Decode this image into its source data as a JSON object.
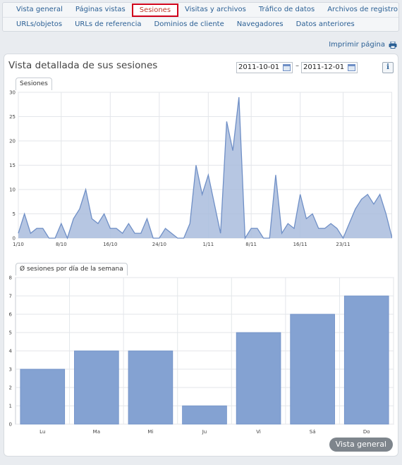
{
  "tabs_row1": [
    "Vista general",
    "Páginas vistas",
    "Sesiones",
    "Visitas y archivos",
    "Tráfico de datos",
    "Archivos de registro"
  ],
  "tabs_row2": [
    "URLs/objetos",
    "URLs de referencia",
    "Dominios de cliente",
    "Navegadores",
    "Datos anteriores"
  ],
  "active_tab": "Sesiones",
  "print_label": "Imprimir página",
  "panel": {
    "title": "Vista detallada de sus sesiones",
    "date_from": "2011-10-01",
    "date_separator": "–",
    "date_to": "2011-12-01",
    "info_label": "i",
    "overview_button": "Vista general"
  },
  "colors": {
    "fill": "#a9bcdd",
    "stroke": "#6f8fc6",
    "bar": "#84a2d2",
    "bar_stroke": "#6f8fc6",
    "active_tab": "#d0021b"
  },
  "chart_data": [
    {
      "type": "area",
      "title": "Sesiones",
      "x_tick_labels": [
        "1/10",
        "8/10",
        "16/10",
        "24/10",
        "1/11",
        "8/11",
        "16/11",
        "23/11"
      ],
      "x_tick_indices": [
        0,
        7,
        15,
        23,
        31,
        38,
        46,
        53
      ],
      "ylim": [
        0,
        30
      ],
      "yticks": [
        0,
        5,
        10,
        15,
        20,
        25,
        30
      ],
      "values": [
        1,
        5,
        1,
        2,
        2,
        0,
        0,
        3,
        0,
        4,
        6,
        10,
        4,
        3,
        5,
        2,
        2,
        1,
        3,
        1,
        1,
        4,
        0,
        0,
        2,
        1,
        0,
        0,
        3,
        15,
        9,
        13,
        7,
        1,
        24,
        18,
        29,
        0,
        2,
        2,
        0,
        0,
        13,
        1,
        3,
        2,
        9,
        4,
        5,
        2,
        2,
        3,
        2,
        0,
        3,
        6,
        8,
        9,
        7,
        9,
        5,
        0
      ],
      "grid": true
    },
    {
      "type": "bar",
      "title": "Ø sesiones por día de la semana",
      "categories": [
        "Lu",
        "Ma",
        "Mi",
        "Ju",
        "Vi",
        "Sá",
        "Do"
      ],
      "values": [
        3,
        4,
        4,
        1,
        5,
        6,
        7
      ],
      "ylim": [
        0,
        8
      ],
      "yticks": [
        0,
        1,
        2,
        3,
        4,
        5,
        6,
        7,
        8
      ],
      "grid": true
    }
  ]
}
